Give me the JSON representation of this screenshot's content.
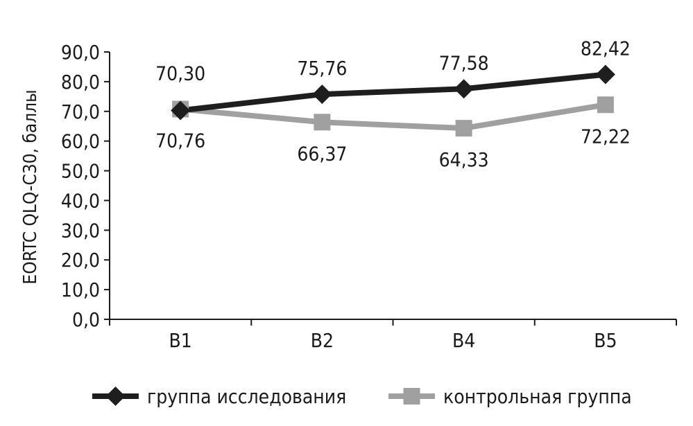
{
  "chart_data": {
    "type": "line",
    "categories": [
      "В1",
      "В2",
      "В4",
      "В5"
    ],
    "ylabel": "EORTC QLQ-C30, баллы",
    "ylim": [
      0,
      90
    ],
    "yticks": [
      "0,0",
      "10,0",
      "20,0",
      "30,0",
      "40,0",
      "50,0",
      "60,0",
      "70,0",
      "80,0",
      "90,0"
    ],
    "grid": false,
    "legend_position": "bottom",
    "series": [
      {
        "name": "группа исследования",
        "values": [
          70.3,
          75.76,
          77.58,
          82.42
        ],
        "labels": [
          "70,30",
          "75,76",
          "77,58",
          "82,42"
        ],
        "color": "#1e1e1e",
        "marker": "diamond"
      },
      {
        "name": "контрольная группа",
        "values": [
          70.76,
          66.37,
          64.33,
          72.22
        ],
        "labels": [
          "70,76",
          "66,37",
          "64,33",
          "72,22"
        ],
        "color": "#a0a0a0",
        "marker": "square"
      }
    ]
  }
}
